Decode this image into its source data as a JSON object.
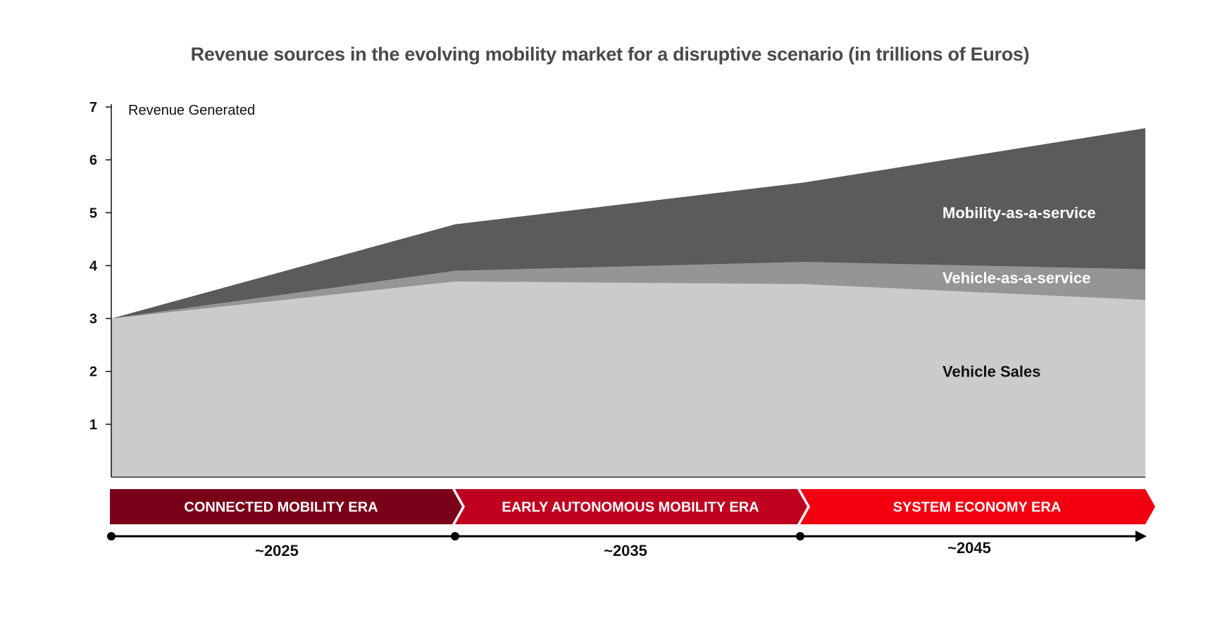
{
  "chart_data": {
    "type": "area",
    "stacked": true,
    "title": "Revenue sources in the evolving mobility market for a disruptive scenario (in trillions of Euros)",
    "ylabel": "Revenue Generated",
    "ylim": [
      0,
      7
    ],
    "yticks": [
      "1",
      "2",
      "3",
      "4",
      "5",
      "6",
      "7"
    ],
    "x": [
      0,
      1,
      2,
      3
    ],
    "series": [
      {
        "name": "Vehicle Sales",
        "values": [
          3.0,
          3.7,
          3.65,
          3.35
        ],
        "color": "#cbcbcb",
        "label_color": "#111111"
      },
      {
        "name": "Vehicle-as-a-service",
        "values": [
          0.0,
          0.2,
          0.42,
          0.58
        ],
        "color": "#959595",
        "label_color": "#ffffff"
      },
      {
        "name": "Mobility-as-a-service",
        "values": [
          0.0,
          0.88,
          1.5,
          2.67
        ],
        "color": "#5b5b5b",
        "label_color": "#ffffff"
      }
    ],
    "eras": [
      {
        "label": "CONNECTED MOBILITY ERA",
        "color": "#7a0019"
      },
      {
        "label": "EARLY AUTONOMOUS  MOBILITY ERA",
        "color": "#c0001f"
      },
      {
        "label": "SYSTEM ECONOMY ERA",
        "color": "#f20010"
      }
    ],
    "timeline": [
      "~2025",
      "~2035",
      "~2045"
    ],
    "grid": false
  }
}
